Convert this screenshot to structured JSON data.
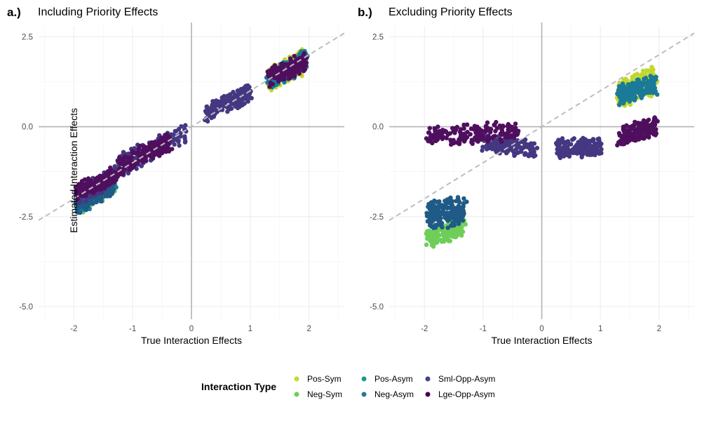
{
  "chart_data": [
    {
      "type": "scatter",
      "tag": "a.)",
      "title": "Including Priority Effects",
      "xlabel": "True Interaction Effects",
      "ylabel": "Estimated Interaction Effects",
      "xlim": [
        -2.6,
        2.6
      ],
      "ylim": [
        -5.35,
        2.8
      ],
      "xticks": [
        -2,
        -1,
        0,
        1,
        2
      ],
      "xtick_labels": [
        "-2",
        "-1",
        "0",
        "1",
        "2"
      ],
      "yticks": [
        2.5,
        0,
        -2.5,
        -5
      ],
      "ytick_labels": [
        "2.5",
        "0.0",
        "-2.5",
        "-5.0"
      ],
      "grid": true,
      "reference_lines": {
        "x": 0,
        "y": 0,
        "identity_dashed": true
      },
      "clusters": [
        {
          "series": "Pos-Sym",
          "x": [
            1.3,
            1.95
          ],
          "y_center_at_x": [
            1.3,
            1.85
          ],
          "spread": 0.38
        },
        {
          "series": "Pos-Asym",
          "x": [
            1.3,
            1.95
          ],
          "y_center_at_x": [
            1.3,
            1.85
          ],
          "spread": 0.33
        },
        {
          "series": "Lge-Opp-Asym",
          "x": [
            1.3,
            1.95
          ],
          "y_center_at_x": [
            1.35,
            1.8
          ],
          "spread": 0.3
        },
        {
          "series": "Sml-Opp-Asym",
          "x": [
            0.25,
            1.0
          ],
          "y_center_at_x": [
            0.35,
            0.95
          ],
          "spread": 0.28
        },
        {
          "series": "Neg-Sym",
          "x": [
            -1.95,
            -1.3
          ],
          "y_center_at_x": [
            -2.1,
            -1.5
          ],
          "spread": 0.4
        },
        {
          "series": "Pos-Asym",
          "x": [
            -1.95,
            -1.3
          ],
          "y_center_at_x": [
            -2.1,
            -1.5
          ],
          "spread": 0.38
        },
        {
          "series": "Neg-Asym",
          "x": [
            -1.95,
            -1.3
          ],
          "y_center_at_x": [
            -2.1,
            -1.5
          ],
          "spread": 0.38
        },
        {
          "series": "Sml-Opp-Asym",
          "x": [
            -1.95,
            -1.3
          ],
          "y_center_at_x": [
            -1.9,
            -1.4
          ],
          "spread": 0.3
        },
        {
          "series": "Lge-Opp-Asym",
          "x": [
            -1.95,
            -1.3
          ],
          "y_center_at_x": [
            -1.85,
            -1.35
          ],
          "spread": 0.28
        },
        {
          "series": "Sml-Opp-Asym",
          "x": [
            -1.3,
            -0.1
          ],
          "y_center_at_x": [
            -1.15,
            -0.15
          ],
          "spread": 0.35
        },
        {
          "series": "Lge-Opp-Asym",
          "x": [
            -1.3,
            -0.35
          ],
          "y_center_at_x": [
            -1.15,
            -0.4
          ],
          "spread": 0.3
        }
      ]
    },
    {
      "type": "scatter",
      "tag": "b.)",
      "title": "Excluding Priority Effects",
      "xlabel": "True Interaction Effects",
      "ylabel": "",
      "xlim": [
        -2.6,
        2.6
      ],
      "ylim": [
        -5.35,
        2.8
      ],
      "xticks": [
        -2,
        -1,
        0,
        1,
        2
      ],
      "xtick_labels": [
        "-2",
        "-1",
        "0",
        "1",
        "2"
      ],
      "yticks": [
        2.5,
        0,
        -2.5,
        -5
      ],
      "ytick_labels": [
        "2.5",
        "0.0",
        "-2.5",
        "-5.0"
      ],
      "grid": true,
      "reference_lines": {
        "x": 0,
        "y": 0,
        "identity_dashed": true
      },
      "clusters": [
        {
          "series": "Pos-Sym",
          "x": [
            1.3,
            1.95
          ],
          "y_center_at_x": [
            0.85,
            1.3
          ],
          "spread": 0.45
        },
        {
          "series": "Pos-Asym",
          "x": [
            1.3,
            1.95
          ],
          "y_center_at_x": [
            0.9,
            1.15
          ],
          "spread": 0.33
        },
        {
          "series": "Lge-Opp-Asym",
          "x": [
            1.3,
            1.95
          ],
          "y_center_at_x": [
            -0.3,
            0.0
          ],
          "spread": 0.3
        },
        {
          "series": "Sml-Opp-Asym",
          "x": [
            0.25,
            1.0
          ],
          "y_center_at_x": [
            -0.6,
            -0.55
          ],
          "spread": 0.3
        },
        {
          "series": "Sml-Opp-Asym",
          "x": [
            -1.0,
            -0.1
          ],
          "y_center_at_x": [
            -0.4,
            -0.65
          ],
          "spread": 0.3
        },
        {
          "series": "Lge-Opp-Asym",
          "x": [
            -1.95,
            -0.4
          ],
          "y_center_at_x": [
            -0.25,
            -0.1
          ],
          "spread": 0.32
        },
        {
          "series": "Neg-Sym",
          "x": [
            -1.95,
            -1.3
          ],
          "y_center_at_x": [
            -3.1,
            -2.75
          ],
          "spread": 0.3
        },
        {
          "series": "Neg-Asym",
          "x": [
            -1.95,
            -1.3
          ],
          "y_center_at_x": [
            -2.5,
            -2.3
          ],
          "spread": 0.45
        }
      ]
    }
  ],
  "legend": {
    "title": "Interaction Type",
    "position": "bottom",
    "items": [
      {
        "label": "Pos-Sym",
        "color": "#bddf26"
      },
      {
        "label": "Neg-Sym",
        "color": "#6ece58"
      },
      {
        "label": "Pos-Asym",
        "color": "#1f9a8a"
      },
      {
        "label": "Neg-Asym",
        "color": "#2a788e"
      },
      {
        "label": "Sml-Opp-Asym",
        "color": "#414487"
      },
      {
        "label": "Lge-Opp-Asym",
        "color": "#440154"
      }
    ]
  },
  "series_colors": {
    "Pos-Sym": "#c2d72e",
    "Neg-Sym": "#6ece58",
    "Pos-Asym": "#1a7a97",
    "Neg-Asym": "#205a86",
    "Sml-Opp-Asym": "#453781",
    "Lge-Opp-Asym": "#4f0f5e"
  }
}
